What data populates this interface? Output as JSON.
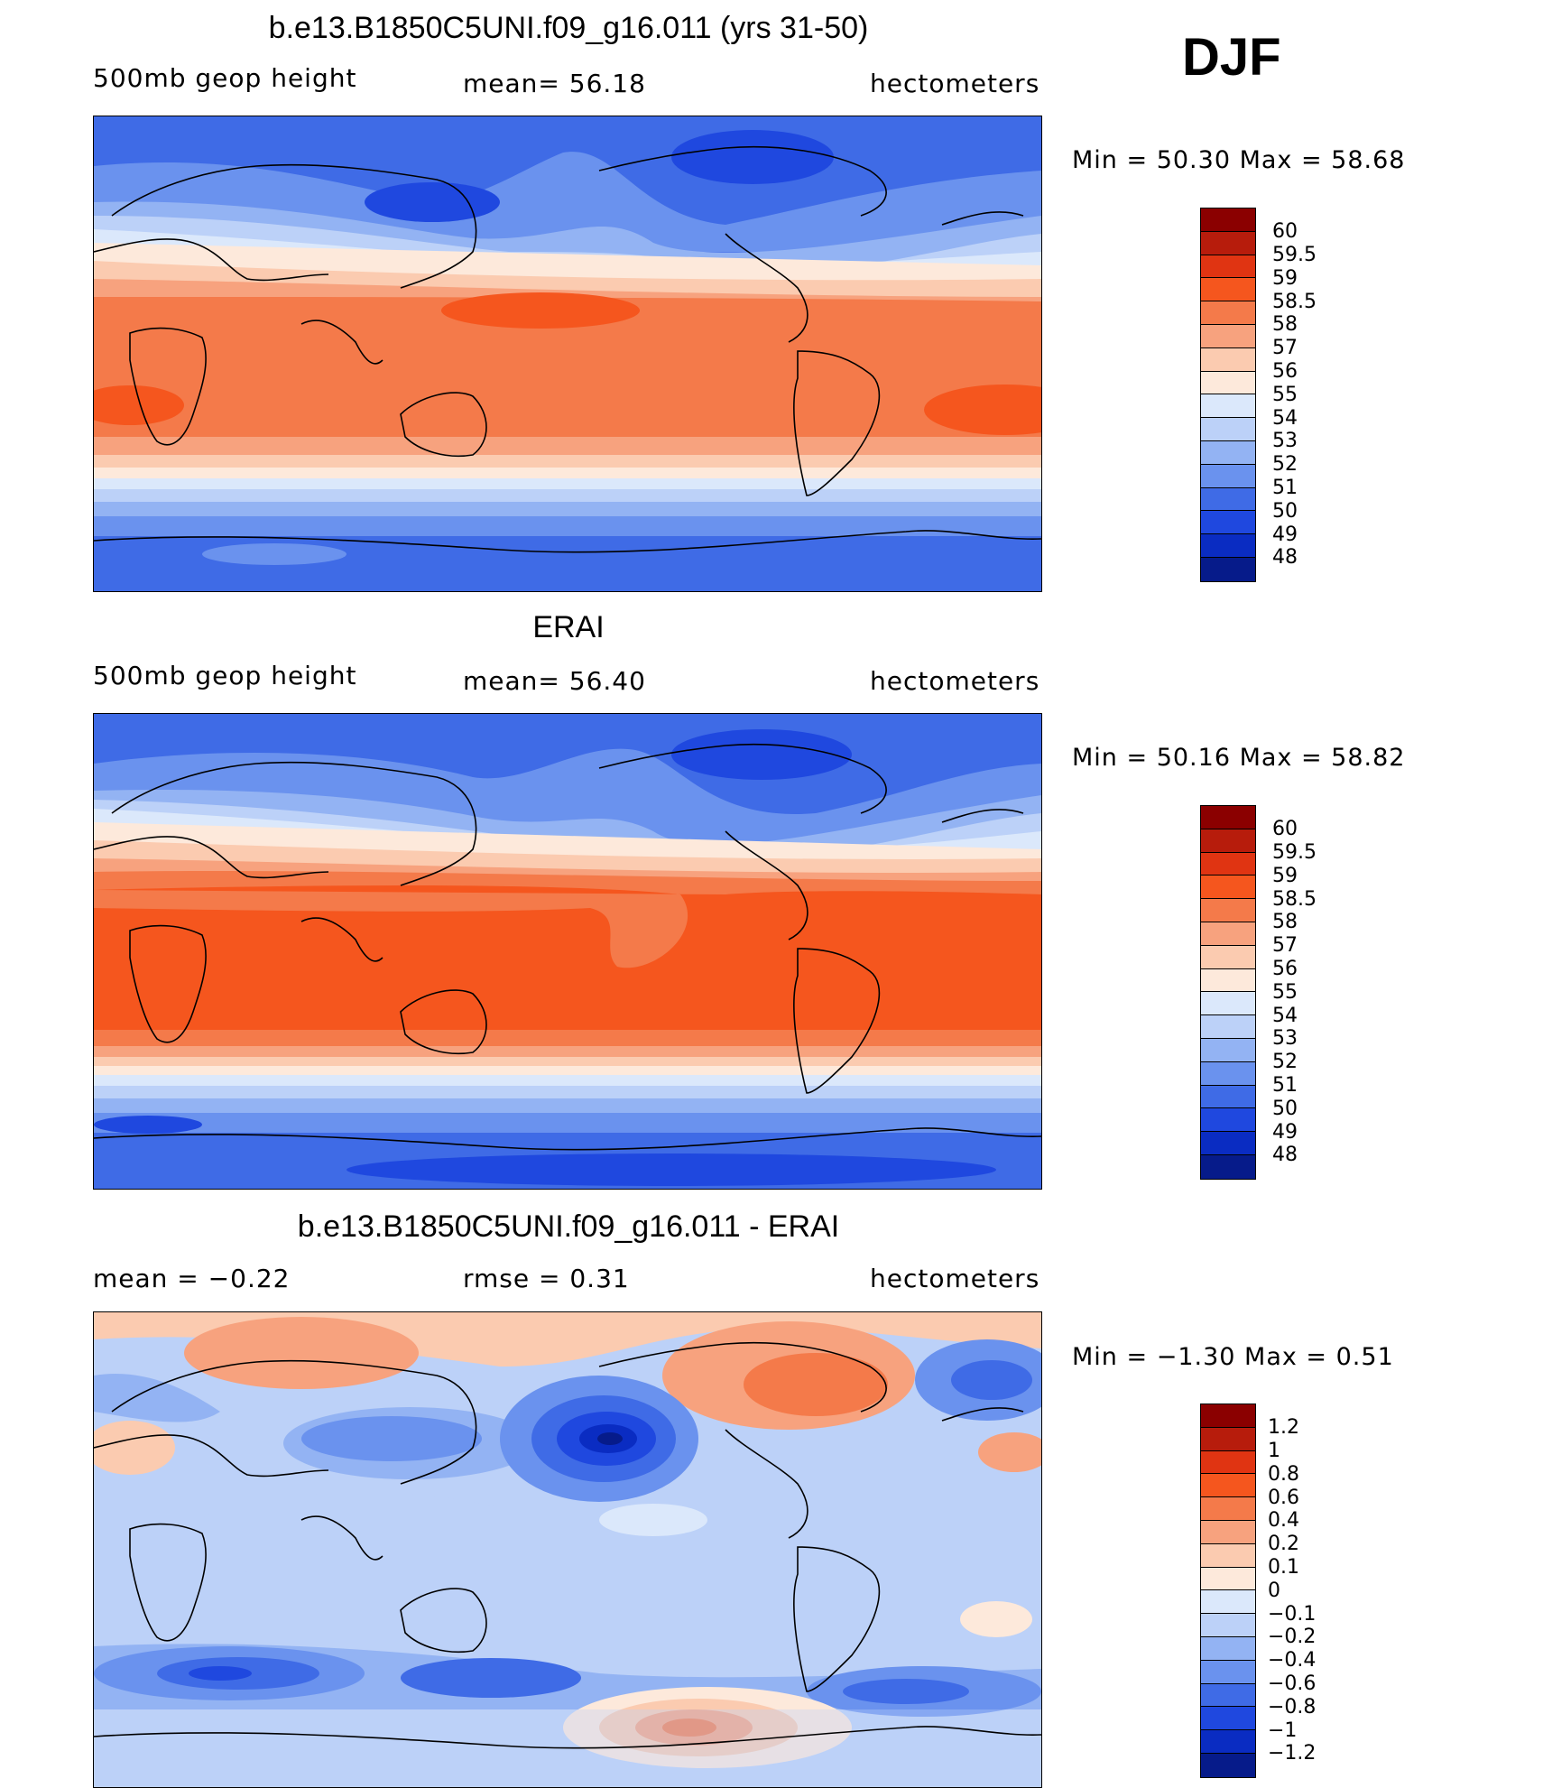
{
  "season": "DJF",
  "panels": [
    {
      "title": "b.e13.B1850C5UNI.f09_g16.011 (yrs 31-50)",
      "left_label": "500mb  geop  height",
      "center_label": "mean=   56.18",
      "right_label": "hectometers",
      "stats": "Min  =    50.30  Max  =    58.68",
      "colorbar": {
        "labels": [
          "60",
          "59.5",
          "59",
          "58.5",
          "58",
          "57",
          "56",
          "55",
          "54",
          "53",
          "52",
          "51",
          "50",
          "49",
          "48"
        ],
        "colors": [
          "#8b0000",
          "#b71c0c",
          "#e03412",
          "#f5561e",
          "#f47a4a",
          "#f7a27e",
          "#fbcbb0",
          "#fde9db",
          "#dbe8fb",
          "#bcd1f8",
          "#93b3f3",
          "#6a92ee",
          "#3f6be6",
          "#1f48df",
          "#0a2cc2",
          "#061b8a"
        ]
      }
    },
    {
      "title": "ERAI",
      "left_label": "500mb  geop  height",
      "center_label": "mean=   56.40",
      "right_label": "hectometers",
      "stats": "Min  =    50.16  Max  =    58.82",
      "colorbar": {
        "labels": [
          "60",
          "59.5",
          "59",
          "58.5",
          "58",
          "57",
          "56",
          "55",
          "54",
          "53",
          "52",
          "51",
          "50",
          "49",
          "48"
        ],
        "colors": [
          "#8b0000",
          "#b71c0c",
          "#e03412",
          "#f5561e",
          "#f47a4a",
          "#f7a27e",
          "#fbcbb0",
          "#fde9db",
          "#dbe8fb",
          "#bcd1f8",
          "#93b3f3",
          "#6a92ee",
          "#3f6be6",
          "#1f48df",
          "#0a2cc2",
          "#061b8a"
        ]
      }
    },
    {
      "title": "b.e13.B1850C5UNI.f09_g16.011 - ERAI",
      "left_label": "mean  =    −0.22",
      "center_label": "rmse  =     0.31",
      "right_label": "hectometers",
      "stats": "Min  =   −1.30  Max  =     0.51",
      "colorbar": {
        "labels": [
          "1.2",
          "1",
          "0.8",
          "0.6",
          "0.4",
          "0.2",
          "0.1",
          "0",
          "−0.1",
          "−0.2",
          "−0.4",
          "−0.6",
          "−0.8",
          "−1",
          "−1.2"
        ],
        "colors": [
          "#8b0000",
          "#b71c0c",
          "#e03412",
          "#f5561e",
          "#f47a4a",
          "#f7a27e",
          "#fbcbb0",
          "#fde9db",
          "#dbe8fb",
          "#bcd1f8",
          "#93b3f3",
          "#6a92ee",
          "#3f6be6",
          "#1f48df",
          "#0a2cc2",
          "#061b8a"
        ]
      }
    }
  ]
}
